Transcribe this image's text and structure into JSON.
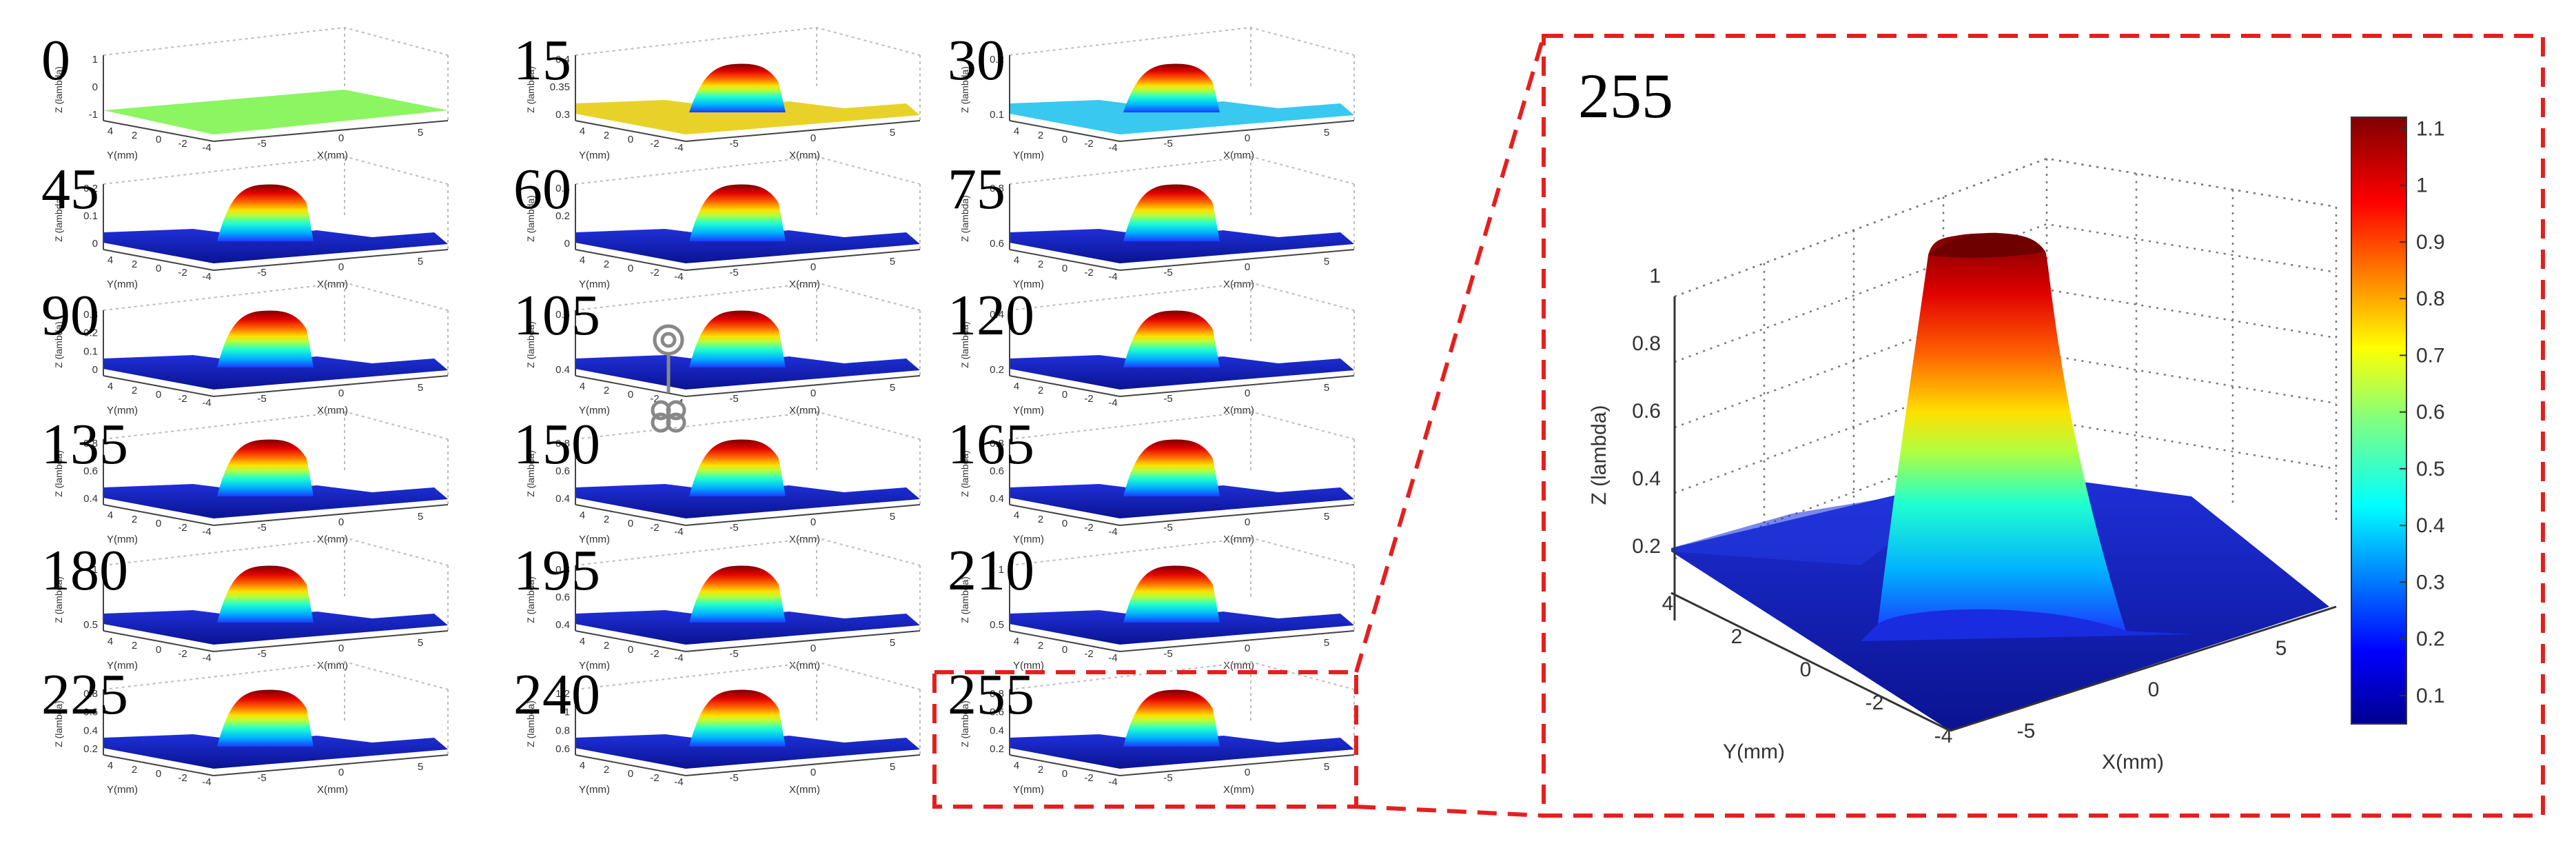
{
  "figure": {
    "panels": [
      {
        "label": "0",
        "zticks": [
          "1",
          "0",
          "-1"
        ]
      },
      {
        "label": "15",
        "zticks": [
          "0.4",
          "0.35",
          "0.3"
        ]
      },
      {
        "label": "30",
        "zticks": [
          "0.2",
          "0.1"
        ]
      },
      {
        "label": "45",
        "zticks": [
          "0.2",
          "0.1",
          "0"
        ]
      },
      {
        "label": "60",
        "zticks": [
          "0.4",
          "0.2",
          "0"
        ]
      },
      {
        "label": "75",
        "zticks": [
          "0.8",
          "0.6"
        ]
      },
      {
        "label": "90",
        "zticks": [
          "0.3",
          "0.2",
          "0.1",
          "0"
        ]
      },
      {
        "label": "105",
        "zticks": [
          "0.6",
          "0.4"
        ]
      },
      {
        "label": "120",
        "zticks": [
          "0.4",
          "0.2"
        ]
      },
      {
        "label": "135",
        "zticks": [
          "0.8",
          "0.6",
          "0.4"
        ]
      },
      {
        "label": "150",
        "zticks": [
          "0.8",
          "0.6",
          "0.4"
        ]
      },
      {
        "label": "165",
        "zticks": [
          "0.8",
          "0.6",
          "0.4"
        ]
      },
      {
        "label": "180",
        "zticks": [
          "1",
          "0.5"
        ]
      },
      {
        "label": "195",
        "zticks": [
          "0.8",
          "0.6",
          "0.4"
        ]
      },
      {
        "label": "210",
        "zticks": [
          "1",
          "0.5"
        ]
      },
      {
        "label": "225",
        "zticks": [
          "0.8",
          "0.6",
          "0.4",
          "0.2"
        ]
      },
      {
        "label": "240",
        "zticks": [
          "1.2",
          "1",
          "0.8",
          "0.6"
        ]
      },
      {
        "label": "255",
        "zticks": [
          "0.8",
          "0.6",
          "0.4",
          "0.2"
        ]
      }
    ],
    "small_xlabel": "X(mm)",
    "small_ylabel": "Y(mm)",
    "small_zlabel": "Z (lambda)",
    "small_xticks": [
      "-5",
      "0",
      "5"
    ],
    "small_yticks": [
      "4",
      "2",
      "0",
      "-2",
      "-4"
    ],
    "colors": {
      "highlight": "#e4201f",
      "low": "#00008f",
      "high": "#800000"
    }
  },
  "chart_data": {
    "type": "surface",
    "label": "255",
    "zlabel": "Z (lambda)",
    "xlabel": "X(mm)",
    "ylabel": "Y(mm)",
    "zticks": [
      "1",
      "0.8",
      "0.6",
      "0.4",
      "0.2"
    ],
    "xticks": [
      "-5",
      "0",
      "5"
    ],
    "yticks": [
      "4",
      "2",
      "0",
      "-2",
      "-4"
    ],
    "xlim": [
      -7,
      7
    ],
    "ylim": [
      -4,
      4
    ],
    "zlim": [
      0.05,
      1.1
    ],
    "colorbar_ticks": [
      "1.1",
      "1",
      "0.9",
      "0.8",
      "0.7",
      "0.6",
      "0.5",
      "0.4",
      "0.3",
      "0.2",
      "0.1"
    ],
    "colorbar_range": [
      0.05,
      1.12
    ],
    "colormap": "jet",
    "plateau_height": 1.08,
    "baseline_height": 0.12
  }
}
